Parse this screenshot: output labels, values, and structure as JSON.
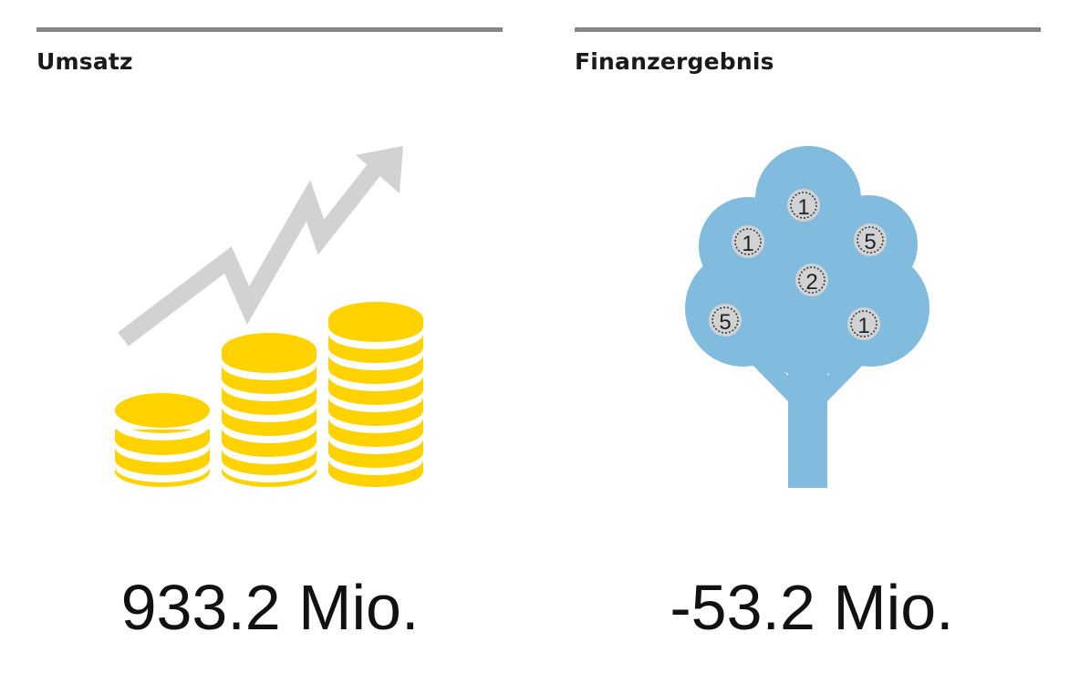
{
  "colors": {
    "rule": "#878787",
    "coin": "#ffd200",
    "arrow": "#d1d2d4",
    "tree": "#81bcde",
    "tree_coin": "#d1d2d4"
  },
  "revenue": {
    "label": "Umsatz",
    "value": "933.2 Mio.",
    "icon": "coins-growth-icon"
  },
  "financial_result": {
    "label": "Finanzergebnis",
    "value": "-53.2 Mio.",
    "icon": "money-tree-icon",
    "coins": [
      "1",
      "1",
      "5",
      "2",
      "5",
      "1"
    ]
  }
}
